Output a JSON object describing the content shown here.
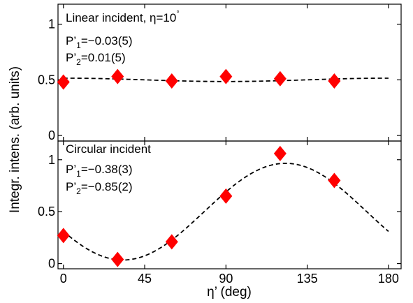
{
  "chart_data": {
    "type": "scatter",
    "shared_xlabel": "η’ (deg)",
    "shared_ylabel": "Integr. intens. (arb. units)",
    "xlim": [
      -3,
      187
    ],
    "xticks": [
      0,
      45,
      90,
      135,
      180
    ],
    "xtick_labels": [
      "0",
      "45",
      "90",
      "135",
      "180"
    ],
    "marker_color": "#ff0000",
    "fit_color": "#000000",
    "panels": [
      {
        "id": "top",
        "title": "Linear incident, η=10",
        "title_superscript": "°",
        "annotations": [
          {
            "prefix": "P’",
            "sub": "1",
            "value": "=−0.03(5)"
          },
          {
            "prefix": "P’",
            "sub": "2",
            "value": "=0.01(5)"
          }
        ],
        "ylim": [
          -0.05,
          1.18
        ],
        "yticks": [
          0,
          0.5,
          1
        ],
        "ytick_labels": [
          "0",
          "0.5",
          "1"
        ],
        "points": {
          "x": [
            0,
            30,
            60,
            90,
            120,
            150
          ],
          "y": [
            0.48,
            0.53,
            0.49,
            0.53,
            0.51,
            0.49
          ]
        },
        "fit": {
          "A": 0.5,
          "B": 0.015,
          "C": 0.0
        }
      },
      {
        "id": "bottom",
        "title": "Circular incident",
        "title_superscript": "",
        "annotations": [
          {
            "prefix": "P’",
            "sub": "1",
            "value": "=−0.38(3)"
          },
          {
            "prefix": "P’",
            "sub": "2",
            "value": "=−0.85(2)"
          }
        ],
        "ylim": [
          -0.05,
          1.18
        ],
        "yticks": [
          0,
          0.5,
          1
        ],
        "ytick_labels": [
          "0",
          "0.5",
          "1"
        ],
        "points": {
          "x": [
            0,
            30,
            60,
            90,
            120,
            150
          ],
          "y": [
            0.27,
            0.04,
            0.21,
            0.65,
            1.06,
            0.8
          ]
        },
        "fit": {
          "A": 0.5,
          "B": -0.19,
          "C": -0.425
        }
      }
    ]
  }
}
